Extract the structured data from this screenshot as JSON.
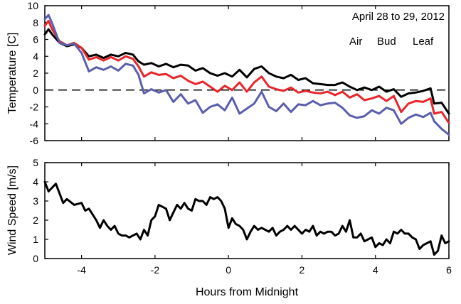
{
  "chart_data": [
    {
      "type": "line",
      "title": "April 28 to 29, 2012",
      "xlabel": "",
      "ylabel": "Temperature [C]",
      "xlim": [
        -5,
        6
      ],
      "ylim": [
        -6,
        10
      ],
      "xticks": [
        -4,
        -2,
        0,
        2,
        4,
        6
      ],
      "yticks": [
        -6,
        -4,
        -2,
        0,
        2,
        4,
        6,
        8,
        10
      ],
      "reference_line": {
        "y": 0,
        "style": "dashed"
      },
      "legend_position": "top-right",
      "series": [
        {
          "name": "Air",
          "color": "#000000",
          "x": [
            -5,
            -4.9,
            -4.8,
            -4.6,
            -4.4,
            -4.2,
            -4,
            -3.8,
            -3.6,
            -3.4,
            -3.2,
            -3,
            -2.8,
            -2.6,
            -2.45,
            -2.3,
            -2.1,
            -1.9,
            -1.7,
            -1.5,
            -1.3,
            -1.1,
            -0.9,
            -0.7,
            -0.5,
            -0.3,
            -0.1,
            0.1,
            0.3,
            0.5,
            0.7,
            0.9,
            1.1,
            1.3,
            1.5,
            1.7,
            1.9,
            2.1,
            2.3,
            2.5,
            2.7,
            2.9,
            3.1,
            3.3,
            3.5,
            3.7,
            3.9,
            4.1,
            4.3,
            4.5,
            4.7,
            4.9,
            5.1,
            5.3,
            5.5,
            5.6,
            5.8,
            6
          ],
          "y": [
            6.6,
            7.2,
            6.6,
            5.6,
            5.2,
            5.4,
            5.0,
            4.0,
            4.2,
            3.8,
            4.2,
            4.0,
            4.4,
            4.2,
            3.4,
            3.0,
            3.2,
            2.8,
            3.1,
            2.7,
            3.0,
            2.9,
            2.3,
            2.6,
            2.0,
            1.7,
            2.0,
            1.6,
            2.4,
            1.5,
            2.5,
            2.8,
            2.0,
            1.6,
            1.4,
            1.8,
            1.2,
            1.4,
            0.8,
            0.7,
            0.6,
            0.6,
            0.9,
            0.4,
            0.0,
            0.3,
            0.0,
            0.4,
            -0.2,
            0.1,
            -0.8,
            -0.4,
            -0.3,
            -0.1,
            0.2,
            -1.6,
            -1.5,
            -2.8
          ]
        },
        {
          "name": "Bud",
          "color": "#e8262b",
          "x": [
            -5,
            -4.9,
            -4.8,
            -4.6,
            -4.4,
            -4.2,
            -4,
            -3.8,
            -3.6,
            -3.4,
            -3.2,
            -3,
            -2.8,
            -2.6,
            -2.45,
            -2.3,
            -2.1,
            -1.9,
            -1.7,
            -1.5,
            -1.3,
            -1.1,
            -0.9,
            -0.7,
            -0.5,
            -0.3,
            -0.1,
            0.1,
            0.3,
            0.5,
            0.7,
            0.9,
            1.1,
            1.3,
            1.5,
            1.7,
            1.9,
            2.1,
            2.3,
            2.5,
            2.7,
            2.9,
            3.1,
            3.3,
            3.5,
            3.7,
            3.9,
            4.1,
            4.3,
            4.5,
            4.7,
            4.9,
            5.1,
            5.3,
            5.5,
            5.6,
            5.8,
            6
          ],
          "y": [
            7.6,
            8.2,
            7.2,
            5.8,
            5.3,
            5.6,
            5.0,
            3.6,
            3.9,
            3.5,
            3.9,
            3.5,
            4.0,
            3.7,
            2.8,
            1.6,
            2.1,
            1.8,
            1.9,
            1.4,
            1.7,
            1.1,
            0.7,
            1.0,
            0.4,
            -0.2,
            0.5,
            0.0,
            0.9,
            -0.2,
            0.9,
            1.6,
            0.4,
            0.1,
            -0.1,
            0.3,
            -0.3,
            -0.1,
            -0.3,
            -0.4,
            -0.2,
            -0.6,
            -0.2,
            -0.9,
            -0.5,
            -1.2,
            -1.0,
            -0.7,
            -1.3,
            -0.7,
            -2.6,
            -1.6,
            -1.3,
            -1.4,
            -1.0,
            -2.8,
            -2.6,
            -3.9
          ]
        },
        {
          "name": "Leaf",
          "color": "#5a5fad",
          "x": [
            -5,
            -4.9,
            -4.8,
            -4.6,
            -4.4,
            -4.2,
            -4,
            -3.8,
            -3.6,
            -3.4,
            -3.2,
            -3,
            -2.8,
            -2.6,
            -2.45,
            -2.3,
            -2.1,
            -1.9,
            -1.7,
            -1.5,
            -1.3,
            -1.1,
            -0.9,
            -0.7,
            -0.5,
            -0.3,
            -0.1,
            0.1,
            0.3,
            0.5,
            0.7,
            0.9,
            1.1,
            1.3,
            1.5,
            1.7,
            1.9,
            2.1,
            2.3,
            2.5,
            2.7,
            2.9,
            3.1,
            3.3,
            3.5,
            3.7,
            3.9,
            4.1,
            4.3,
            4.5,
            4.7,
            4.9,
            5.1,
            5.3,
            5.5,
            5.6,
            5.8,
            6
          ],
          "y": [
            8.4,
            8.9,
            7.9,
            5.6,
            5.3,
            5.5,
            4.4,
            2.2,
            2.7,
            2.4,
            2.8,
            2.3,
            3.1,
            2.9,
            1.8,
            -0.4,
            0.1,
            -0.3,
            0.0,
            -1.4,
            -0.5,
            -1.6,
            -1.2,
            -2.7,
            -2.0,
            -1.7,
            -2.4,
            -0.9,
            -2.8,
            -2.2,
            -1.6,
            -0.2,
            -2.0,
            -2.5,
            -1.6,
            -2.6,
            -1.7,
            -1.8,
            -1.3,
            -1.8,
            -1.6,
            -1.5,
            -2.1,
            -3.0,
            -3.3,
            -3.1,
            -2.4,
            -2.8,
            -2.1,
            -2.4,
            -4.0,
            -3.3,
            -2.9,
            -3.2,
            -2.7,
            -3.7,
            -4.6,
            -5.3
          ]
        }
      ]
    },
    {
      "type": "line",
      "xlabel": "Hours from Midnight",
      "ylabel": "Wind Speed [m/s]",
      "xlim": [
        -5,
        6
      ],
      "ylim": [
        0,
        5
      ],
      "xticks": [
        -4,
        -2,
        0,
        2,
        4,
        6
      ],
      "yticks": [
        0,
        1,
        2,
        3,
        4,
        5
      ],
      "series": [
        {
          "color": "#000000",
          "x": [
            -5,
            -4.9,
            -4.7,
            -4.5,
            -4.4,
            -4.2,
            -4.0,
            -3.9,
            -3.8,
            -3.6,
            -3.5,
            -3.4,
            -3.3,
            -3.2,
            -3.1,
            -3.0,
            -2.9,
            -2.8,
            -2.7,
            -2.6,
            -2.5,
            -2.4,
            -2.3,
            -2.2,
            -2.1,
            -2.0,
            -1.9,
            -1.8,
            -1.7,
            -1.6,
            -1.5,
            -1.4,
            -1.3,
            -1.2,
            -1.1,
            -1.0,
            -0.9,
            -0.8,
            -0.7,
            -0.6,
            -0.5,
            -0.4,
            -0.3,
            -0.2,
            -0.1,
            0.0,
            0.1,
            0.2,
            0.3,
            0.4,
            0.5,
            0.6,
            0.7,
            0.8,
            0.9,
            1.0,
            1.1,
            1.2,
            1.3,
            1.4,
            1.5,
            1.6,
            1.7,
            1.8,
            1.9,
            2.0,
            2.1,
            2.2,
            2.3,
            2.4,
            2.5,
            2.6,
            2.7,
            2.8,
            2.9,
            3.0,
            3.1,
            3.2,
            3.3,
            3.4,
            3.5,
            3.6,
            3.7,
            3.8,
            3.9,
            4.0,
            4.1,
            4.2,
            4.3,
            4.4,
            4.5,
            4.6,
            4.7,
            4.8,
            4.9,
            5.0,
            5.1,
            5.2,
            5.3,
            5.4,
            5.5,
            5.6,
            5.7,
            5.8,
            5.9,
            6.0
          ],
          "y": [
            4.0,
            3.5,
            3.9,
            2.9,
            3.1,
            2.8,
            2.9,
            2.5,
            2.6,
            2.0,
            1.6,
            2.0,
            1.7,
            1.5,
            1.7,
            1.3,
            1.2,
            1.2,
            1.1,
            1.2,
            1.3,
            1.0,
            1.5,
            1.2,
            2.0,
            2.2,
            2.8,
            2.7,
            2.6,
            2.0,
            2.4,
            2.8,
            2.6,
            2.9,
            2.6,
            2.5,
            3.1,
            3.0,
            3.0,
            2.8,
            3.2,
            3.1,
            3.2,
            3.0,
            2.6,
            1.6,
            2.1,
            1.8,
            1.7,
            1.5,
            1.0,
            1.4,
            1.7,
            1.5,
            1.6,
            1.5,
            1.4,
            1.6,
            1.2,
            1.4,
            1.5,
            1.7,
            1.5,
            1.7,
            1.5,
            1.3,
            1.5,
            1.4,
            1.7,
            1.2,
            1.4,
            1.3,
            1.4,
            1.4,
            1.2,
            1.3,
            1.7,
            1.4,
            2.0,
            1.1,
            1.1,
            1.3,
            0.9,
            1.0,
            1.1,
            0.6,
            0.8,
            0.7,
            1.0,
            0.8,
            1.4,
            1.3,
            1.5,
            1.3,
            1.3,
            1.1,
            1.0,
            0.5,
            0.7,
            0.8,
            0.9,
            0.2,
            0.4,
            1.2,
            0.8,
            0.9
          ]
        }
      ]
    }
  ]
}
